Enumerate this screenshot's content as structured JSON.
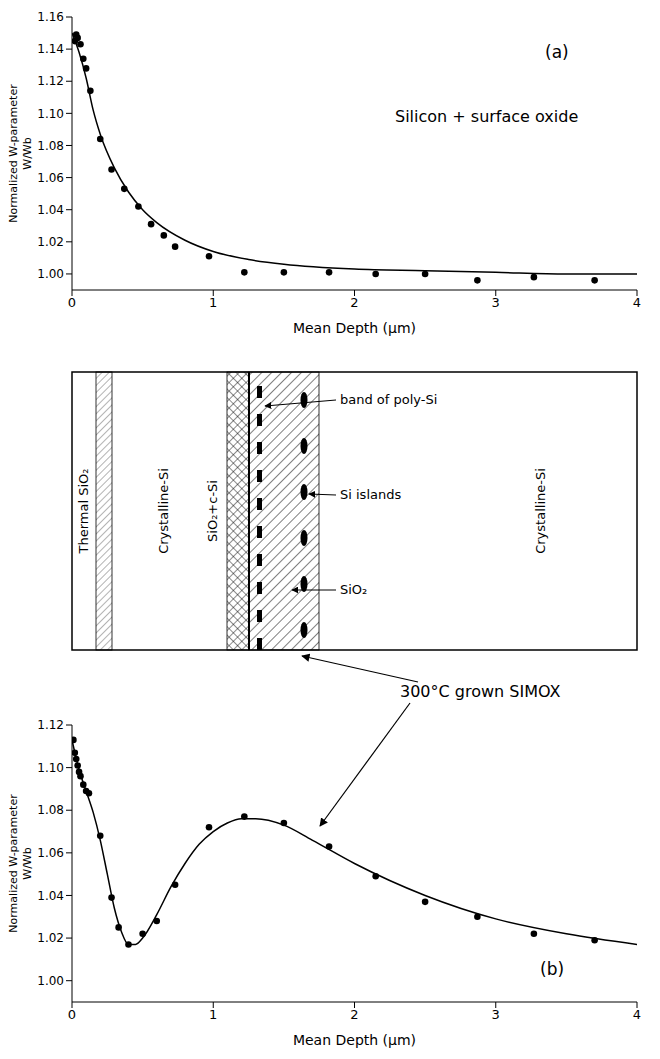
{
  "chart_data": [
    {
      "type": "scatter",
      "panel_label": "(a)",
      "annotations": [
        "Silicon + surface oxide"
      ],
      "x_label": "Mean Depth (μm)",
      "y_label": "Normalized W-parameter W/Wb",
      "xlim": [
        0,
        4
      ],
      "xticks": [
        0,
        1,
        2,
        3,
        4
      ],
      "ylim": [
        0.99,
        1.16
      ],
      "yticks": [
        {
          "value": 1,
          "label": "1.00"
        },
        1.02,
        1.04,
        1.06,
        1.08,
        {
          "value": 1.1,
          "label": "1.10"
        },
        1.12,
        1.14,
        1.16
      ],
      "grid": false,
      "series": [
        {
          "type": "scatter",
          "marker": "circle",
          "color": "#000000",
          "x": [
            0.02,
            0.03,
            0.04,
            0.06,
            0.08,
            0.1,
            0.13,
            0.2,
            0.28,
            0.37,
            0.47,
            0.56,
            0.65,
            0.73,
            0.97,
            1.22,
            1.5,
            1.82,
            2.15,
            2.5,
            2.87,
            3.27,
            3.7
          ],
          "values": [
            1.145,
            1.149,
            1.147,
            1.143,
            1.134,
            1.128,
            1.114,
            1.084,
            1.065,
            1.053,
            1.042,
            1.031,
            1.024,
            1.017,
            1.011,
            1.001,
            1.001,
            1.001,
            1.0,
            1.0,
            0.996,
            0.998,
            0.996
          ]
        },
        {
          "type": "line",
          "line_style": "solid",
          "color": "#000000",
          "x": [
            0,
            0.05,
            0.1,
            0.15,
            0.2,
            0.3,
            0.4,
            0.5,
            0.6,
            0.8,
            1.0,
            1.25,
            1.5,
            2,
            2.5,
            3,
            3.5,
            4
          ],
          "values": [
            1.15,
            1.138,
            1.122,
            1.102,
            1.087,
            1.066,
            1.051,
            1.04,
            1.032,
            1.021,
            1.014,
            1.009,
            1.006,
            1.003,
            1.002,
            1.001,
            1.0,
            1.0
          ]
        }
      ]
    },
    {
      "type": "scatter",
      "panel_label": "(b)",
      "annotations": [
        "300°C grown SIMOX"
      ],
      "x_label": "Mean Depth (μm)",
      "y_label": "Normalized W-parameter W/Wb",
      "xlim": [
        0,
        4
      ],
      "xticks": [
        0,
        1,
        2,
        3,
        4
      ],
      "ylim": [
        0.99,
        1.12
      ],
      "yticks": [
        {
          "value": 1,
          "label": "1.00"
        },
        1.02,
        1.04,
        1.06,
        1.08,
        {
          "value": 1.1,
          "label": "1.10"
        },
        1.12
      ],
      "grid": false,
      "series": [
        {
          "type": "scatter",
          "marker": "circle",
          "color": "#000000",
          "x": [
            0.01,
            0.02,
            0.03,
            0.04,
            0.05,
            0.06,
            0.08,
            0.1,
            0.12,
            0.2,
            0.28,
            0.33,
            0.4,
            0.5,
            0.6,
            0.73,
            0.97,
            1.22,
            1.5,
            1.82,
            2.15,
            2.5,
            2.87,
            3.27,
            3.7
          ],
          "values": [
            1.113,
            1.107,
            1.104,
            1.101,
            1.098,
            1.096,
            1.092,
            1.089,
            1.088,
            1.068,
            1.039,
            1.025,
            1.017,
            1.022,
            1.028,
            1.045,
            1.072,
            1.077,
            1.074,
            1.063,
            1.049,
            1.037,
            1.03,
            1.022,
            1.019
          ]
        },
        {
          "type": "line",
          "line_style": "solid",
          "color": "#000000",
          "x": [
            0,
            0.05,
            0.1,
            0.15,
            0.2,
            0.25,
            0.3,
            0.35,
            0.4,
            0.45,
            0.5,
            0.6,
            0.7,
            0.8,
            0.9,
            1.0,
            1.1,
            1.2,
            1.3,
            1.5,
            1.7,
            2.0,
            2.5,
            3.0,
            3.5,
            4.0
          ],
          "values": [
            1.113,
            1.099,
            1.089,
            1.079,
            1.066,
            1.05,
            1.034,
            1.023,
            1.017,
            1.017,
            1.02,
            1.031,
            1.044,
            1.055,
            1.064,
            1.07,
            1.074,
            1.076,
            1.076,
            1.073,
            1.066,
            1.055,
            1.04,
            1.029,
            1.022,
            1.017
          ]
        }
      ]
    }
  ],
  "diagram": {
    "layers": [
      "Thermal SiO₂",
      "Crystalline-Si",
      "SiO₂+c-Si",
      "SiO₂",
      "Crystalline-Si"
    ],
    "features": [
      "band of poly-Si",
      "Si islands"
    ]
  }
}
